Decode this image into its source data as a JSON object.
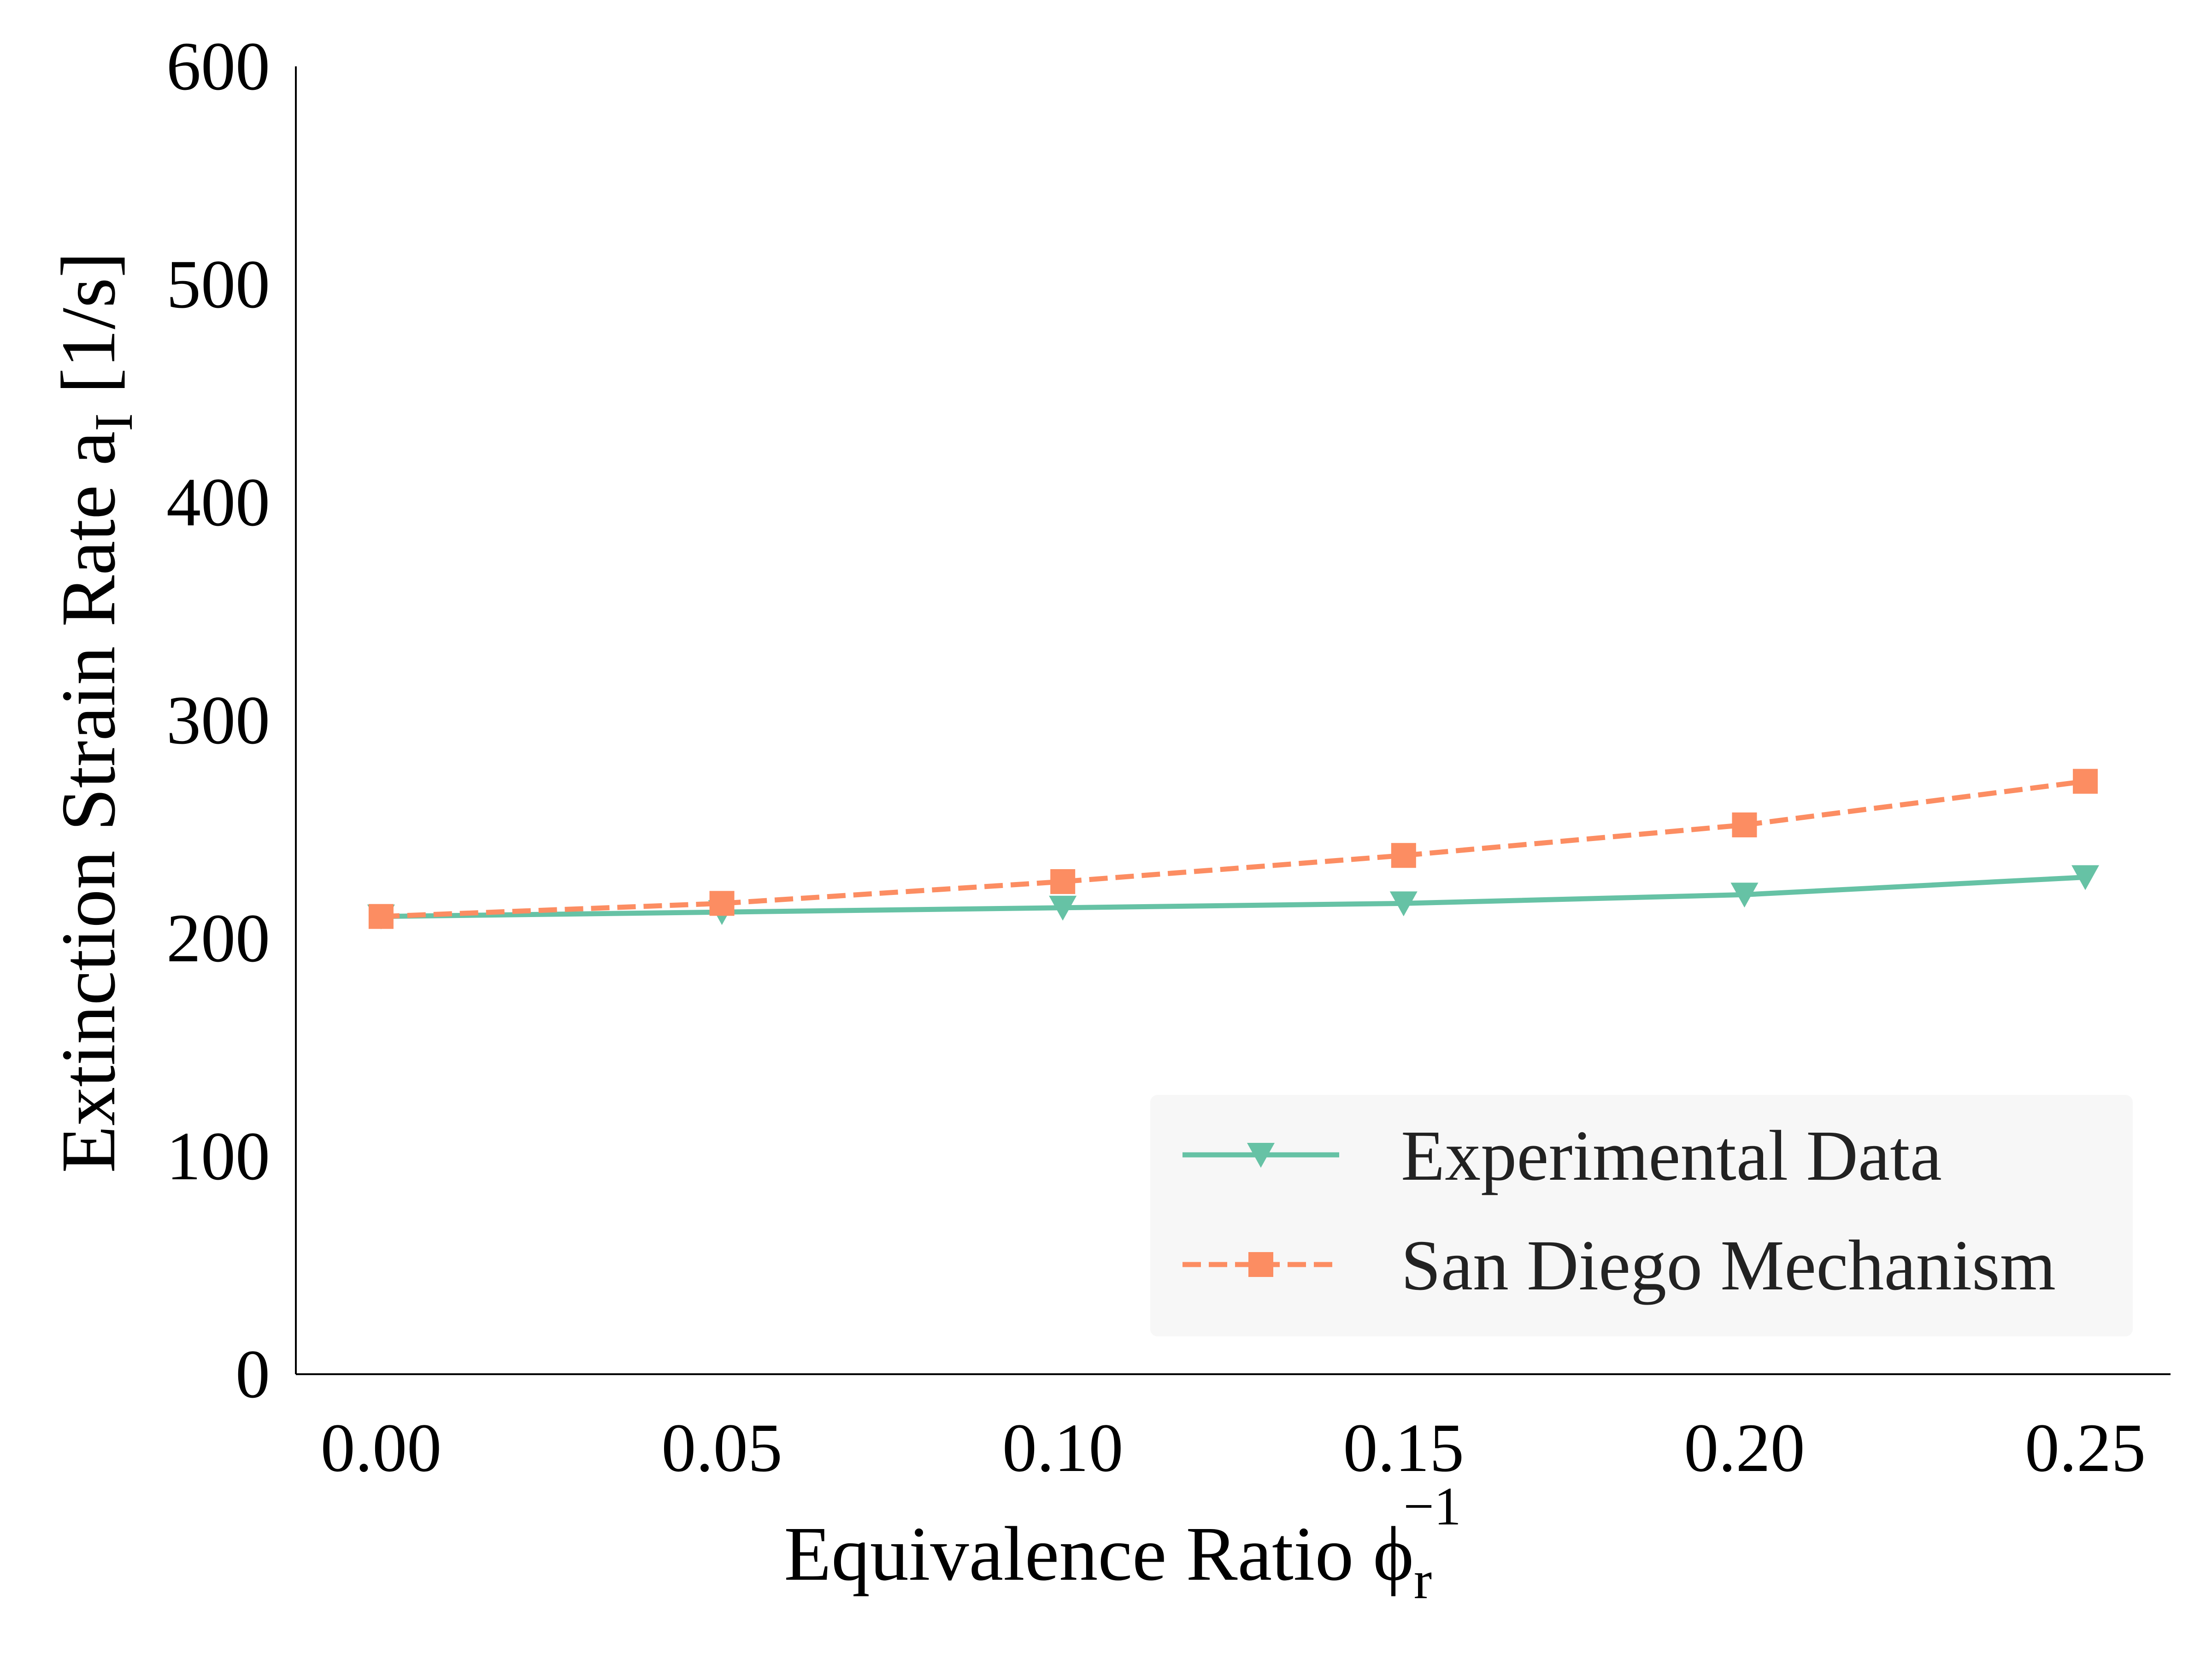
{
  "chart_data": {
    "type": "line",
    "x": [
      0.0,
      0.05,
      0.1,
      0.15,
      0.2,
      0.25
    ],
    "x_tick_labels": [
      "0.00",
      "0.05",
      "0.10",
      "0.15",
      "0.20",
      "0.25"
    ],
    "y_tick_labels": [
      "0",
      "100",
      "200",
      "300",
      "400",
      "500",
      "600"
    ],
    "xlim": [
      -0.0125,
      0.2625
    ],
    "ylim": [
      0,
      600
    ],
    "xlabel": {
      "main": "Equivalence Ratio ϕ",
      "sub": "r",
      "sup": "−1"
    },
    "ylabel": {
      "main": "Extinction Strain Rate a",
      "sub": "I",
      "tail": " [1/s]"
    },
    "grid": false,
    "legend_position": "lower-right",
    "series": [
      {
        "name": "Experimental Data",
        "values": [
          210,
          212,
          214,
          216,
          220,
          228
        ],
        "color": "#66c2a5",
        "line_style": "solid",
        "marker": "triangle-down"
      },
      {
        "name": "San Diego Mechanism",
        "values": [
          210,
          216,
          226,
          238,
          252,
          272
        ],
        "color": "#fc8d62",
        "line_style": "dashed",
        "marker": "square"
      }
    ]
  }
}
